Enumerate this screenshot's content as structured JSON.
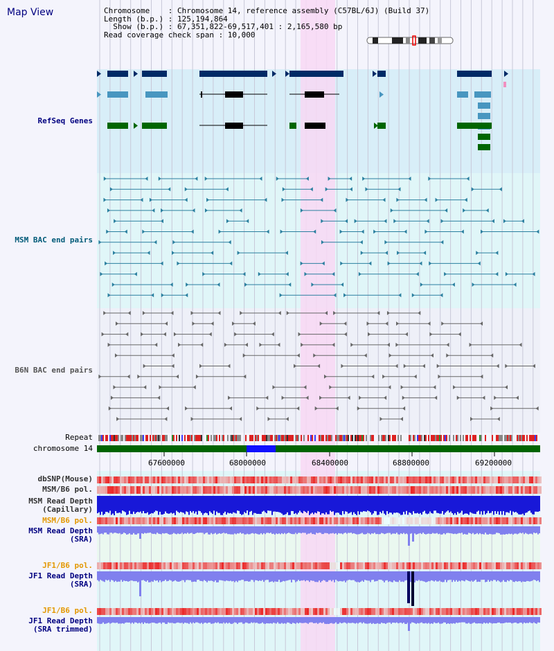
{
  "page_title": "Map View",
  "header": {
    "line1": "Chromosome    : Chromosome 14, reference assembly (C57BL/6J) (Build 37)",
    "line2": "Length (b.p.) : 125,194,864",
    "line3": "  Show (b.p.) : 67,351,822-69,517,401 : 2,165,580 bp",
    "line4": "Read coverage check span : 10,000"
  },
  "tracks": {
    "refseq": "RefSeq Genes",
    "msm_bac": "MSM BAC end pairs",
    "b6n_bac": "B6N BAC end pairs",
    "repeat": "Repeat",
    "chromosome": "chromosome 14",
    "dbsnp": "dbSNP(Mouse)",
    "msm_b6_pol": "MSM/B6 pol.",
    "msm_read_depth_cap": "MSM Read Depth",
    "capillary": "(Capillary)",
    "msm_b6_pol2": "MSM/B6 pol.",
    "msm_read_depth_sra": "MSM Read Depth",
    "sra1": "(SRA)",
    "jf1_b6_pol": "JF1/B6 pol.",
    "jf1_read_depth": "JF1 Read Depth",
    "sra2": "(SRA)",
    "jf1_b6_pol2": "JF1/B6 pol.",
    "jf1_read_depth_trim": "JF1 Read Depth",
    "sra_trimmed": "(SRA trimmed)"
  },
  "axis": {
    "ticks": [
      "67600000",
      "68000000",
      "68400000",
      "68800000",
      "69200000"
    ]
  },
  "colors": {
    "refseq_dark": "#002a66",
    "refseq_mid": "#4896c0",
    "refseq_green": "#006600",
    "msm_line": "#2a7f9f",
    "b6n_line": "#666666",
    "chromosome_band": "#006400",
    "chromosome_highlight": "#1010ff",
    "highlight_region": "#f8d8f4"
  }
}
